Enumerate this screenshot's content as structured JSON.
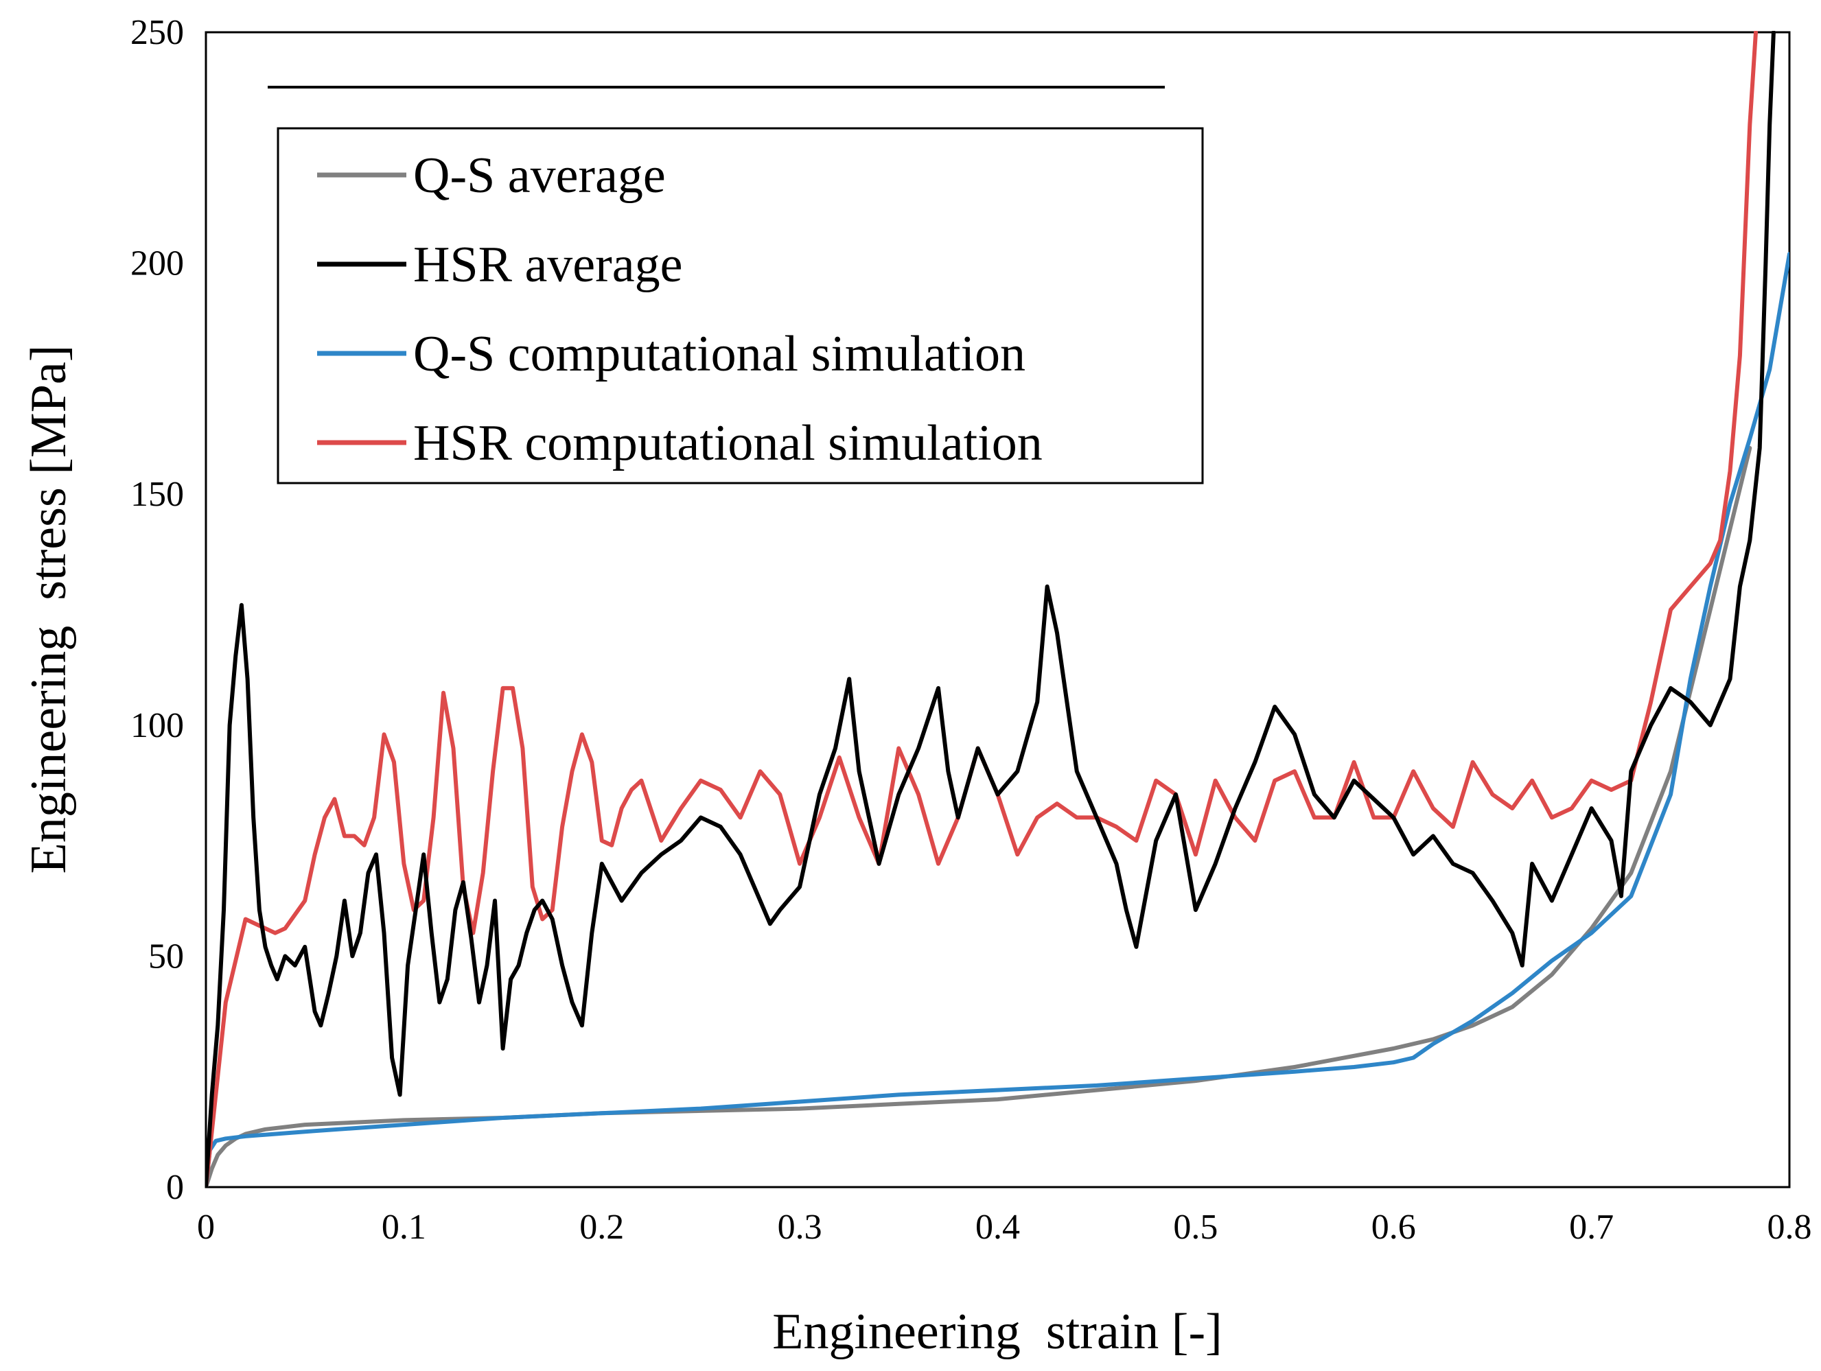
{
  "chart_data": {
    "type": "line",
    "title": "",
    "xlabel": "Engineering  strain [-]",
    "ylabel": "Engineering  stress [MPa]",
    "xlim": [
      0,
      0.8
    ],
    "ylim": [
      0,
      250
    ],
    "x_ticks": [
      "0",
      "0.1",
      "0.2",
      "0.3",
      "0.4",
      "0.5",
      "0.6",
      "0.7",
      "0.8"
    ],
    "y_ticks": [
      "0",
      "50",
      "100",
      "150",
      "200",
      "250"
    ],
    "grid": false,
    "legend_position": "top-left",
    "series": [
      {
        "name": "Q-S average",
        "color": "#808080",
        "x": [
          0,
          0.003,
          0.006,
          0.01,
          0.015,
          0.02,
          0.03,
          0.05,
          0.1,
          0.15,
          0.2,
          0.25,
          0.3,
          0.35,
          0.4,
          0.45,
          0.5,
          0.55,
          0.6,
          0.62,
          0.64,
          0.66,
          0.68,
          0.7,
          0.72,
          0.74,
          0.76,
          0.78
        ],
        "y": [
          0,
          4,
          7,
          9,
          10.5,
          11.5,
          12.5,
          13.5,
          14.5,
          15,
          16,
          16.5,
          17,
          18,
          19,
          21,
          23,
          26,
          30,
          32,
          35,
          39,
          46,
          56,
          68,
          90,
          125,
          160
        ]
      },
      {
        "name": "HSR average",
        "color": "#000000",
        "x": [
          0,
          0.003,
          0.006,
          0.009,
          0.012,
          0.015,
          0.018,
          0.021,
          0.024,
          0.027,
          0.03,
          0.033,
          0.036,
          0.04,
          0.045,
          0.05,
          0.055,
          0.058,
          0.062,
          0.066,
          0.07,
          0.074,
          0.078,
          0.082,
          0.086,
          0.09,
          0.094,
          0.098,
          0.102,
          0.106,
          0.11,
          0.114,
          0.118,
          0.122,
          0.126,
          0.13,
          0.134,
          0.138,
          0.142,
          0.146,
          0.15,
          0.154,
          0.158,
          0.162,
          0.166,
          0.17,
          0.175,
          0.18,
          0.185,
          0.19,
          0.195,
          0.2,
          0.21,
          0.22,
          0.23,
          0.24,
          0.25,
          0.26,
          0.27,
          0.28,
          0.285,
          0.29,
          0.3,
          0.31,
          0.318,
          0.325,
          0.33,
          0.34,
          0.35,
          0.36,
          0.37,
          0.375,
          0.38,
          0.39,
          0.4,
          0.41,
          0.42,
          0.425,
          0.43,
          0.44,
          0.45,
          0.46,
          0.465,
          0.47,
          0.48,
          0.49,
          0.5,
          0.51,
          0.52,
          0.53,
          0.54,
          0.55,
          0.56,
          0.57,
          0.58,
          0.59,
          0.6,
          0.61,
          0.62,
          0.63,
          0.64,
          0.65,
          0.66,
          0.665,
          0.67,
          0.68,
          0.69,
          0.7,
          0.71,
          0.715,
          0.72,
          0.73,
          0.74,
          0.75,
          0.76,
          0.77,
          0.775,
          0.78,
          0.785,
          0.788,
          0.79,
          0.792
        ],
        "y": [
          0,
          20,
          35,
          60,
          100,
          115,
          126,
          110,
          80,
          60,
          52,
          48,
          45,
          50,
          48,
          52,
          38,
          35,
          42,
          50,
          62,
          50,
          55,
          68,
          72,
          55,
          28,
          20,
          48,
          60,
          72,
          55,
          40,
          45,
          60,
          66,
          54,
          40,
          48,
          62,
          30,
          45,
          48,
          55,
          60,
          62,
          58,
          48,
          40,
          35,
          55,
          70,
          62,
          68,
          72,
          75,
          80,
          78,
          72,
          62,
          57,
          60,
          65,
          85,
          95,
          110,
          90,
          70,
          85,
          95,
          108,
          90,
          80,
          95,
          85,
          90,
          105,
          130,
          120,
          90,
          80,
          70,
          60,
          52,
          75,
          85,
          60,
          70,
          82,
          92,
          104,
          98,
          85,
          80,
          88,
          84,
          80,
          72,
          76,
          70,
          68,
          62,
          55,
          48,
          70,
          62,
          72,
          82,
          75,
          63,
          90,
          100,
          108,
          105,
          100,
          110,
          130,
          140,
          160,
          200,
          230,
          250
        ]
      },
      {
        "name": "Q-S computational simulation",
        "color": "#2e86c8",
        "x": [
          0,
          0.002,
          0.005,
          0.01,
          0.02,
          0.05,
          0.1,
          0.15,
          0.2,
          0.25,
          0.3,
          0.35,
          0.4,
          0.45,
          0.5,
          0.55,
          0.58,
          0.6,
          0.61,
          0.62,
          0.64,
          0.66,
          0.68,
          0.7,
          0.72,
          0.74,
          0.75,
          0.76,
          0.77,
          0.78,
          0.79,
          0.8
        ],
        "y": [
          0,
          8,
          10,
          10.5,
          11,
          12,
          13.5,
          15,
          16,
          17,
          18.5,
          20,
          21,
          22,
          23.5,
          25,
          26,
          27,
          28,
          31,
          36,
          42,
          49,
          55,
          63,
          85,
          110,
          130,
          148,
          162,
          177,
          202
        ]
      },
      {
        "name": "HSR computational simulation",
        "color": "#dd4a4a",
        "x": [
          0,
          0.01,
          0.02,
          0.03,
          0.035,
          0.04,
          0.05,
          0.055,
          0.06,
          0.065,
          0.07,
          0.075,
          0.08,
          0.085,
          0.09,
          0.095,
          0.1,
          0.105,
          0.11,
          0.115,
          0.12,
          0.125,
          0.13,
          0.135,
          0.14,
          0.145,
          0.15,
          0.155,
          0.16,
          0.165,
          0.17,
          0.175,
          0.18,
          0.185,
          0.19,
          0.195,
          0.2,
          0.205,
          0.21,
          0.215,
          0.22,
          0.23,
          0.24,
          0.25,
          0.26,
          0.27,
          0.28,
          0.29,
          0.3,
          0.31,
          0.32,
          0.33,
          0.34,
          0.35,
          0.36,
          0.37,
          0.38,
          0.39,
          0.4,
          0.41,
          0.42,
          0.43,
          0.44,
          0.45,
          0.46,
          0.47,
          0.48,
          0.49,
          0.5,
          0.51,
          0.52,
          0.53,
          0.54,
          0.55,
          0.56,
          0.57,
          0.58,
          0.59,
          0.6,
          0.61,
          0.62,
          0.63,
          0.64,
          0.65,
          0.66,
          0.67,
          0.68,
          0.69,
          0.7,
          0.71,
          0.72,
          0.73,
          0.74,
          0.75,
          0.76,
          0.765,
          0.77,
          0.775,
          0.78,
          0.783
        ],
        "y": [
          0,
          40,
          58,
          56,
          55,
          56,
          62,
          72,
          80,
          84,
          76,
          76,
          74,
          80,
          98,
          92,
          70,
          60,
          62,
          80,
          107,
          95,
          65,
          55,
          68,
          90,
          108,
          108,
          95,
          65,
          58,
          60,
          78,
          90,
          98,
          92,
          75,
          74,
          82,
          86,
          88,
          75,
          82,
          88,
          86,
          80,
          90,
          85,
          70,
          80,
          93,
          80,
          70,
          95,
          85,
          70,
          80,
          95,
          85,
          72,
          80,
          83,
          80,
          80,
          78,
          75,
          88,
          85,
          72,
          88,
          80,
          75,
          88,
          90,
          80,
          80,
          92,
          80,
          80,
          90,
          82,
          78,
          92,
          85,
          82,
          88,
          80,
          82,
          88,
          86,
          88,
          105,
          125,
          130,
          135,
          140,
          155,
          180,
          230,
          250
        ]
      }
    ]
  }
}
